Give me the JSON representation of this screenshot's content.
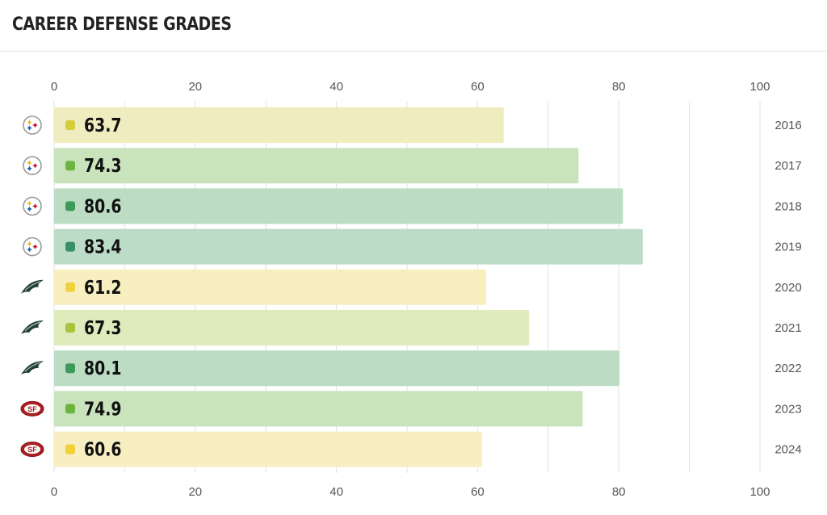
{
  "title": "CAREER DEFENSE GRADES",
  "chart_data": {
    "type": "bar",
    "orientation": "horizontal",
    "title": "CAREER DEFENSE GRADES",
    "xlim": [
      0,
      100
    ],
    "xticks": [
      0,
      20,
      40,
      60,
      80,
      100
    ],
    "xtick_labels": [
      "0",
      "20",
      "40",
      "60",
      "80",
      "100"
    ],
    "grid": true,
    "categories": [
      "2016",
      "2017",
      "2018",
      "2019",
      "2020",
      "2021",
      "2022",
      "2023",
      "2024"
    ],
    "values": [
      63.7,
      74.3,
      80.6,
      83.4,
      61.2,
      67.3,
      80.1,
      74.9,
      60.6
    ],
    "value_labels": [
      "63.7",
      "74.3",
      "80.6",
      "83.4",
      "61.2",
      "67.3",
      "80.1",
      "74.9",
      "60.6"
    ],
    "teams": [
      "steelers",
      "steelers",
      "steelers",
      "steelers",
      "eagles",
      "eagles",
      "eagles",
      "49ers",
      "49ers"
    ],
    "team_icons": [
      "steelers-logo-icon",
      "steelers-logo-icon",
      "steelers-logo-icon",
      "steelers-logo-icon",
      "eagles-logo-icon",
      "eagles-logo-icon",
      "eagles-logo-icon",
      "49ers-logo-icon",
      "49ers-logo-icon"
    ],
    "bar_colors": [
      "#efedbf",
      "#c9e4bd",
      "#bcdcc4",
      "#bcdcc8",
      "#f7efbf",
      "#e0ebbd",
      "#bcdcc4",
      "#c9e4bd",
      "#f7eec2"
    ],
    "dot_colors": [
      "#d4ce3c",
      "#6cb43e",
      "#3d9a5a",
      "#3a8f66",
      "#f0d23e",
      "#a8c43e",
      "#3d9a5a",
      "#6cb43e",
      "#f2d03a"
    ]
  }
}
